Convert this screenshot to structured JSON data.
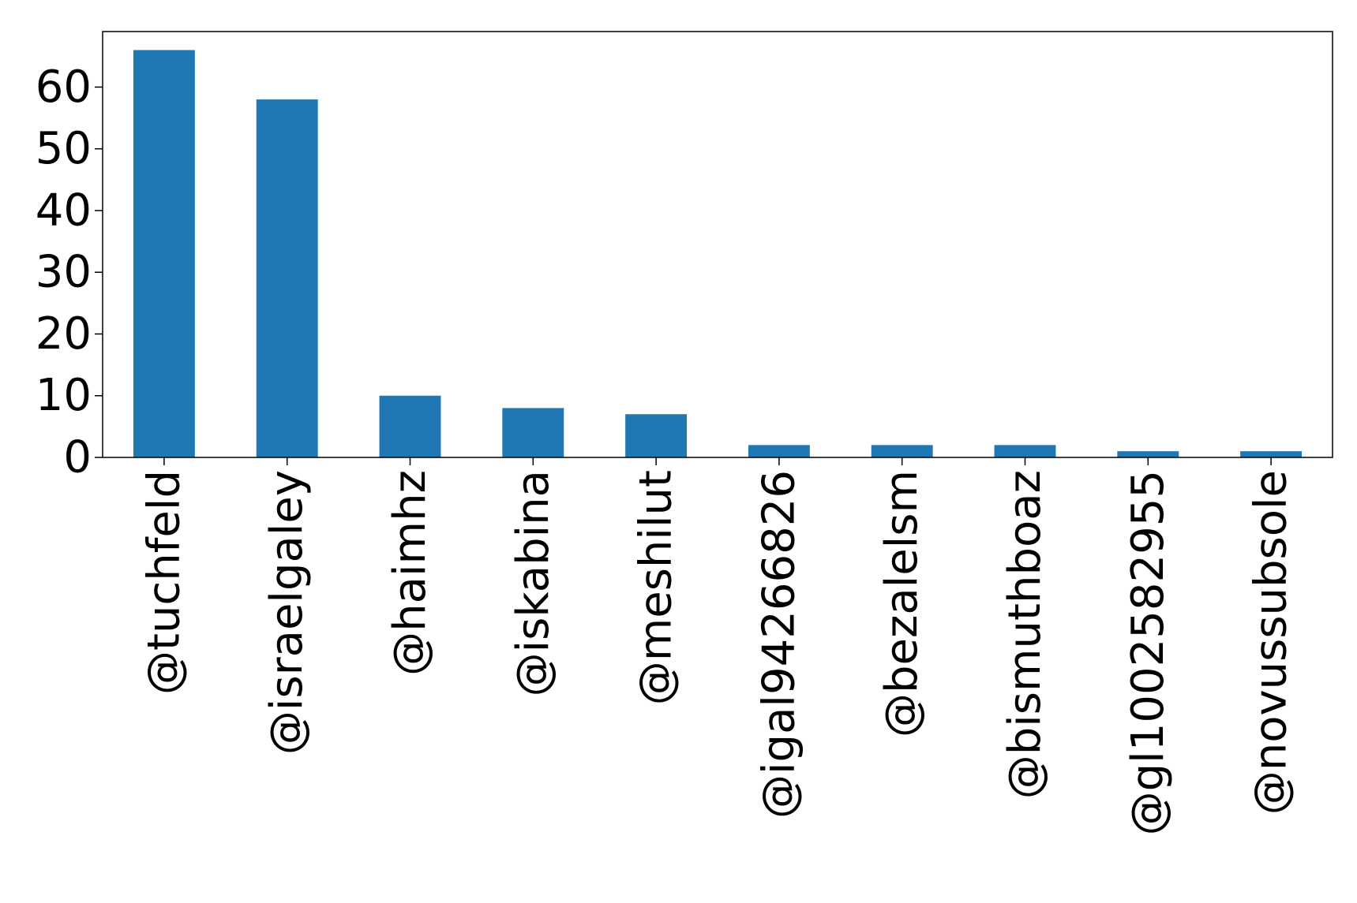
{
  "chart_data": {
    "type": "bar",
    "categories": [
      "@tuchfeld",
      "@israelgaley",
      "@haimhz",
      "@iskabina",
      "@meshilut",
      "@igal94266826",
      "@bezalelsm",
      "@bismuthboaz",
      "@gl10025829​55",
      "@novussubsole"
    ],
    "values": [
      66,
      58,
      10,
      8,
      7,
      2,
      2,
      2,
      1,
      1
    ],
    "ylim": [
      0,
      69
    ],
    "yticks": [
      0,
      10,
      20,
      30,
      40,
      50,
      60
    ],
    "grid": false,
    "legend": "none",
    "colors": {
      "bar": "#1f77b4",
      "axis": "#000000"
    }
  }
}
